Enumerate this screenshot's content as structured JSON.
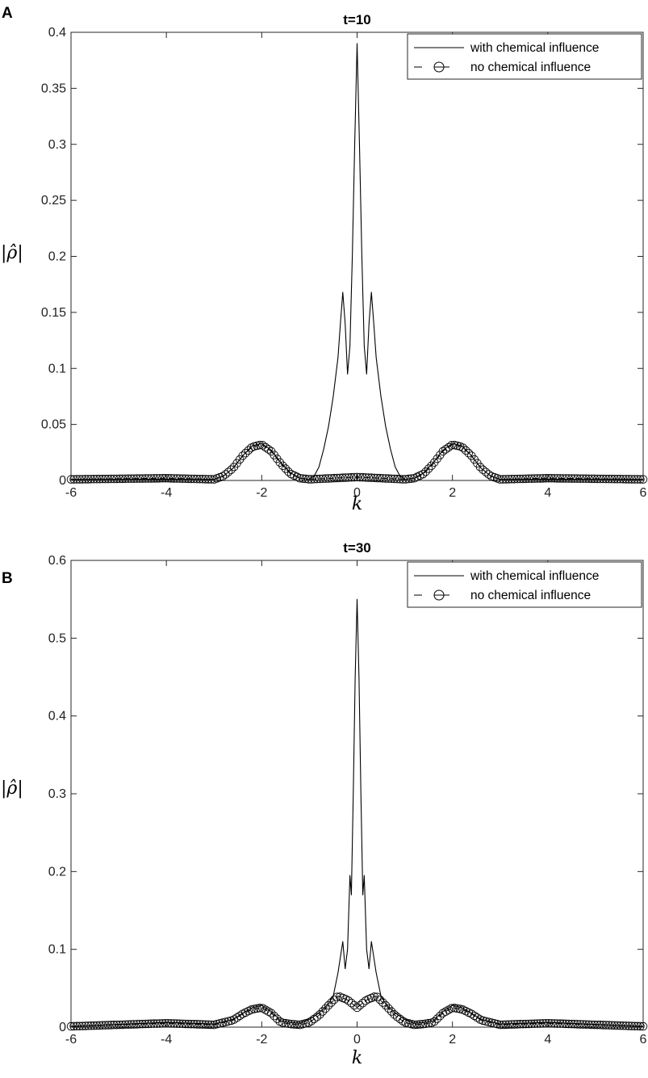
{
  "chart_data": [
    {
      "panel": "A",
      "type": "line",
      "title": "t=10",
      "xlabel": "k",
      "ylabel": "|ρ̂|",
      "xlim": [
        -6,
        6
      ],
      "ylim": [
        0,
        0.4
      ],
      "xticks": [
        -6,
        -4,
        -2,
        0,
        2,
        4,
        6
      ],
      "xtick_labels": [
        "-6",
        "-4",
        "-2",
        "0",
        "2",
        "4",
        "6"
      ],
      "yticks": [
        0,
        0.05,
        0.1,
        0.15,
        0.2,
        0.25,
        0.3,
        0.35,
        0.4
      ],
      "ytick_labels": [
        "0",
        "0.05",
        "0.1",
        "0.15",
        "0.2",
        "0.25",
        "0.3",
        "0.35",
        "0.4"
      ],
      "grid": false,
      "legend_position": "top-right",
      "series": [
        {
          "name": "with chemical influence",
          "style": "solid",
          "x": [
            -6,
            -4,
            -3,
            -2.8,
            -2.6,
            -2.4,
            -2.2,
            -2.0,
            -1.8,
            -1.6,
            -1.4,
            -1.2,
            -1.0,
            -0.9,
            -0.8,
            -0.7,
            -0.6,
            -0.5,
            -0.4,
            -0.35,
            -0.3,
            -0.25,
            -0.2,
            -0.15,
            -0.1,
            -0.05,
            0,
            0.05,
            0.1,
            0.15,
            0.2,
            0.25,
            0.3,
            0.35,
            0.4,
            0.5,
            0.6,
            0.7,
            0.8,
            0.9,
            1.0,
            1.2,
            1.4,
            1.6,
            1.8,
            2.0,
            2.2,
            2.4,
            2.6,
            2.8,
            3,
            4,
            6
          ],
          "y": [
            0.001,
            0.001,
            0.001,
            0.004,
            0.011,
            0.022,
            0.031,
            0.033,
            0.027,
            0.016,
            0.007,
            0.002,
            0.001,
            0.004,
            0.012,
            0.028,
            0.048,
            0.075,
            0.11,
            0.14,
            0.168,
            0.14,
            0.095,
            0.12,
            0.2,
            0.3,
            0.39,
            0.3,
            0.2,
            0.12,
            0.095,
            0.14,
            0.168,
            0.14,
            0.11,
            0.075,
            0.048,
            0.028,
            0.012,
            0.004,
            0.001,
            0.002,
            0.007,
            0.016,
            0.027,
            0.033,
            0.031,
            0.022,
            0.011,
            0.004,
            0.001,
            0.001,
            0.001
          ]
        },
        {
          "name": "no chemical influence",
          "style": "dashed-circle",
          "x": [
            -6,
            -4,
            -3,
            -2.8,
            -2.6,
            -2.4,
            -2.2,
            -2.0,
            -1.8,
            -1.6,
            -1.4,
            -1.2,
            -1.0,
            0,
            1.0,
            1.2,
            1.4,
            1.6,
            1.8,
            2.0,
            2.2,
            2.4,
            2.6,
            2.8,
            3,
            4,
            6
          ],
          "y": [
            0.001,
            0.002,
            0.001,
            0.004,
            0.011,
            0.022,
            0.03,
            0.032,
            0.026,
            0.015,
            0.006,
            0.002,
            0.001,
            0.003,
            0.001,
            0.002,
            0.006,
            0.015,
            0.026,
            0.032,
            0.03,
            0.022,
            0.011,
            0.004,
            0.001,
            0.002,
            0.001
          ]
        }
      ]
    },
    {
      "panel": "B",
      "type": "line",
      "title": "t=30",
      "xlabel": "k",
      "ylabel": "|ρ̂|",
      "xlim": [
        -6,
        6
      ],
      "ylim": [
        0,
        0.6
      ],
      "xticks": [
        -6,
        -4,
        -2,
        0,
        2,
        4,
        6
      ],
      "xtick_labels": [
        "-6",
        "-4",
        "-2",
        "0",
        "2",
        "4",
        "6"
      ],
      "yticks": [
        0,
        0.1,
        0.2,
        0.3,
        0.4,
        0.5,
        0.6
      ],
      "ytick_labels": [
        "0",
        "0.1",
        "0.2",
        "0.3",
        "0.4",
        "0.5",
        "0.6"
      ],
      "grid": false,
      "legend_position": "top-right",
      "series": [
        {
          "name": "with chemical influence",
          "style": "solid",
          "x": [
            -6,
            -4,
            -3,
            -2.6,
            -2.4,
            -2.2,
            -2.0,
            -1.8,
            -1.6,
            -1.4,
            -1.2,
            -1.0,
            -0.8,
            -0.6,
            -0.5,
            -0.4,
            -0.3,
            -0.25,
            -0.2,
            -0.15,
            -0.12,
            -0.08,
            -0.04,
            0,
            0.04,
            0.08,
            0.12,
            0.15,
            0.2,
            0.25,
            0.3,
            0.4,
            0.5,
            0.6,
            0.8,
            1.0,
            1.2,
            1.4,
            1.6,
            1.8,
            2.0,
            2.2,
            2.4,
            2.6,
            3,
            4,
            6
          ],
          "y": [
            0.001,
            0.006,
            0.004,
            0.01,
            0.018,
            0.025,
            0.028,
            0.02,
            0.008,
            0.006,
            0.005,
            0.01,
            0.018,
            0.03,
            0.04,
            0.07,
            0.11,
            0.075,
            0.1,
            0.195,
            0.17,
            0.3,
            0.45,
            0.55,
            0.45,
            0.3,
            0.17,
            0.195,
            0.1,
            0.075,
            0.11,
            0.07,
            0.04,
            0.03,
            0.018,
            0.01,
            0.005,
            0.006,
            0.008,
            0.02,
            0.028,
            0.025,
            0.018,
            0.01,
            0.004,
            0.006,
            0.001
          ]
        },
        {
          "name": "no chemical influence",
          "style": "dashed-circle",
          "x": [
            -6,
            -4,
            -3,
            -2.6,
            -2.4,
            -2.2,
            -2.0,
            -1.8,
            -1.6,
            -1.4,
            -1.2,
            -1.0,
            -0.8,
            -0.6,
            -0.4,
            -0.2,
            0,
            0.2,
            0.4,
            0.6,
            0.8,
            1.0,
            1.2,
            1.4,
            1.6,
            1.8,
            2.0,
            2.2,
            2.4,
            2.6,
            3,
            4,
            6
          ],
          "y": [
            0.001,
            0.005,
            0.003,
            0.009,
            0.017,
            0.023,
            0.025,
            0.018,
            0.006,
            0.004,
            0.003,
            0.006,
            0.015,
            0.028,
            0.04,
            0.035,
            0.025,
            0.035,
            0.04,
            0.028,
            0.015,
            0.006,
            0.003,
            0.004,
            0.006,
            0.018,
            0.025,
            0.023,
            0.017,
            0.009,
            0.003,
            0.005,
            0.001
          ]
        }
      ]
    }
  ]
}
